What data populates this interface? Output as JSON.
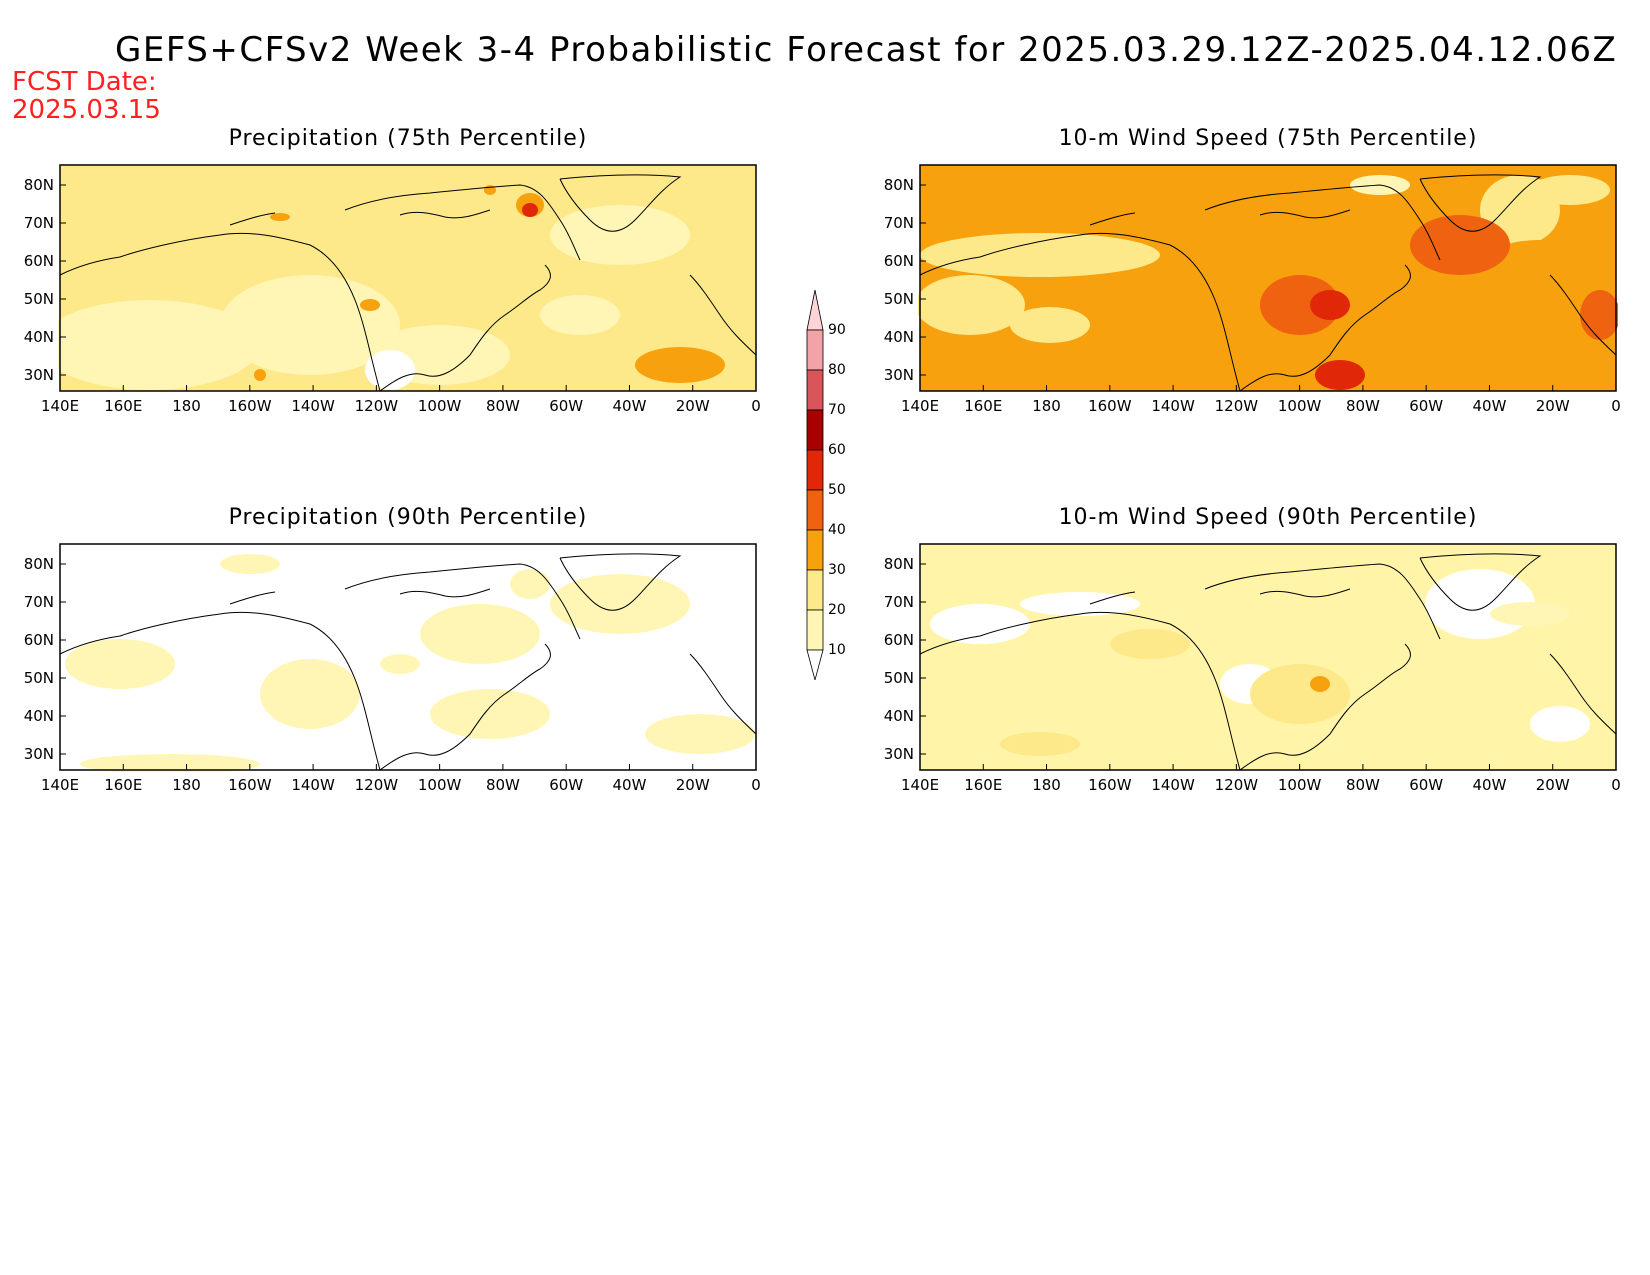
{
  "title": "GEFS+CFSv2 Week 3-4 Probabilistic Forecast for 2025.03.29.12Z-2025.04.12.06Z",
  "forecast_date": {
    "line1": "FCST Date:",
    "line2": "2025.03.15"
  },
  "lat_labels": [
    "80N",
    "70N",
    "60N",
    "50N",
    "40N",
    "30N"
  ],
  "lon_labels": [
    "140E",
    "160E",
    "180",
    "160W",
    "140W",
    "120W",
    "100W",
    "80W",
    "60W",
    "40W",
    "20W",
    "0"
  ],
  "panels": [
    {
      "title": "Precipitation (75th Percentile)",
      "base_color": "#fde98a"
    },
    {
      "title": "10-m Wind Speed (75th Percentile)",
      "base_color": "#f8a10e"
    },
    {
      "title": "Precipitation (90th Percentile)",
      "base_color": "#ffffff"
    },
    {
      "title": "10-m Wind Speed (90th Percentile)",
      "base_color": "#fff4a8"
    }
  ],
  "colorbar": {
    "labels": [
      "90",
      "80",
      "70",
      "60",
      "50",
      "40",
      "30",
      "20",
      "10"
    ],
    "colors": [
      "#fff6b5",
      "#fde98a",
      "#f8a10e",
      "#ef6210",
      "#e02708",
      "#a80000",
      "#d9555a",
      "#f3a3a8",
      "#fdd5d8"
    ]
  }
}
